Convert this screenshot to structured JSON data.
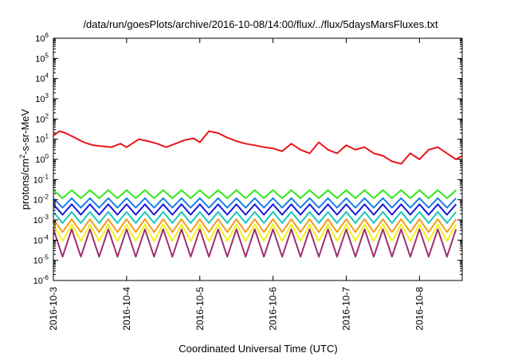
{
  "chart_data": {
    "type": "line",
    "title": "/data/run/goesPlots/archive/2016-10-08/14:00/flux/../flux/5daysMarsFluxes.txt",
    "xlabel": "Coordinated Universal Time (UTC)",
    "ylabel_parts": {
      "base": "protons/cm",
      "sup": "2",
      "rest": "-s-sr-MeV"
    },
    "y_scale": "log",
    "ylim": [
      1e-06,
      1000000.0
    ],
    "y_ticks": [
      {
        "base": "10",
        "exp": "-6",
        "value": 1e-06
      },
      {
        "base": "10",
        "exp": "-5",
        "value": 1e-05
      },
      {
        "base": "10",
        "exp": "-4",
        "value": 0.0001
      },
      {
        "base": "10",
        "exp": "-3",
        "value": 0.001
      },
      {
        "base": "10",
        "exp": "-2",
        "value": 0.01
      },
      {
        "base": "10",
        "exp": "-1",
        "value": 0.1
      },
      {
        "base": "10",
        "exp": "0",
        "value": 1
      },
      {
        "base": "10",
        "exp": "1",
        "value": 10
      },
      {
        "base": "10",
        "exp": "2",
        "value": 100
      },
      {
        "base": "10",
        "exp": "3",
        "value": 1000
      },
      {
        "base": "10",
        "exp": "4",
        "value": 10000
      },
      {
        "base": "10",
        "exp": "5",
        "value": 100000
      },
      {
        "base": "10",
        "exp": "6",
        "value": 1000000
      }
    ],
    "xlim": [
      "2016-10-03T00:00",
      "2016-10-08T14:00"
    ],
    "x_ticks": [
      "2016-10-3",
      "2016-10-4",
      "2016-10-5",
      "2016-10-6",
      "2016-10-7",
      "2016-10-8"
    ],
    "grid": false,
    "legend": "none",
    "series": [
      {
        "color": "#e8161a",
        "x": [
          "2016-10-03T00:00",
          "2016-10-03T02:00",
          "2016-10-03T04:00",
          "2016-10-03T07:00",
          "2016-10-03T10:00",
          "2016-10-03T13:00",
          "2016-10-03T16:00",
          "2016-10-03T19:00",
          "2016-10-03T22:00",
          "2016-10-04T00:00",
          "2016-10-04T04:00",
          "2016-10-04T07:00",
          "2016-10-04T10:00",
          "2016-10-04T13:00",
          "2016-10-04T16:00",
          "2016-10-04T19:00",
          "2016-10-04T22:00",
          "2016-10-05T00:00",
          "2016-10-05T03:00",
          "2016-10-05T06:00",
          "2016-10-05T09:00",
          "2016-10-05T12:00",
          "2016-10-05T15:00",
          "2016-10-05T18:00",
          "2016-10-05T21:00",
          "2016-10-06T00:00",
          "2016-10-06T03:00",
          "2016-10-06T06:00",
          "2016-10-06T09:00",
          "2016-10-06T12:00",
          "2016-10-06T15:00",
          "2016-10-06T18:00",
          "2016-10-06T21:00",
          "2016-10-07T00:00",
          "2016-10-07T03:00",
          "2016-10-07T06:00",
          "2016-10-07T09:00",
          "2016-10-07T12:00",
          "2016-10-07T15:00",
          "2016-10-07T18:00",
          "2016-10-07T21:00",
          "2016-10-08T00:00",
          "2016-10-08T03:00",
          "2016-10-08T06:00",
          "2016-10-08T09:00",
          "2016-10-08T12:00",
          "2016-10-08T14:00"
        ],
        "y": [
          15,
          25,
          20,
          12,
          7,
          5,
          4.5,
          4,
          6,
          4,
          10,
          8,
          6,
          4,
          6,
          9,
          11,
          7,
          25,
          20,
          12,
          8,
          6,
          5,
          4,
          3.5,
          2.5,
          6,
          3,
          2,
          7,
          3,
          2,
          5,
          3,
          4,
          2,
          1.5,
          0.8,
          0.6,
          2,
          1,
          3,
          4,
          2,
          1,
          1.5
        ]
      },
      {
        "color": "#2ee81a",
        "period_h": 3,
        "high": 0.03,
        "low": 0.012
      },
      {
        "color": "#1a7ee8",
        "period_h": 3,
        "high": 0.012,
        "low": 0.004
      },
      {
        "color": "#1a1ad6",
        "period_h": 3,
        "high": 0.006,
        "low": 0.0018
      },
      {
        "color": "#1ac8b8",
        "period_h": 3,
        "high": 0.0025,
        "low": 0.0007
      },
      {
        "color": "#f0a018",
        "period_h": 3,
        "high": 0.0011,
        "low": 0.00025
      },
      {
        "color": "#f2f21a",
        "period_h": 3,
        "high": 0.0006,
        "low": 9e-05
      },
      {
        "color": "#a0306e",
        "period_h": 3,
        "high": 0.00035,
        "low": 1.5e-05
      }
    ]
  }
}
